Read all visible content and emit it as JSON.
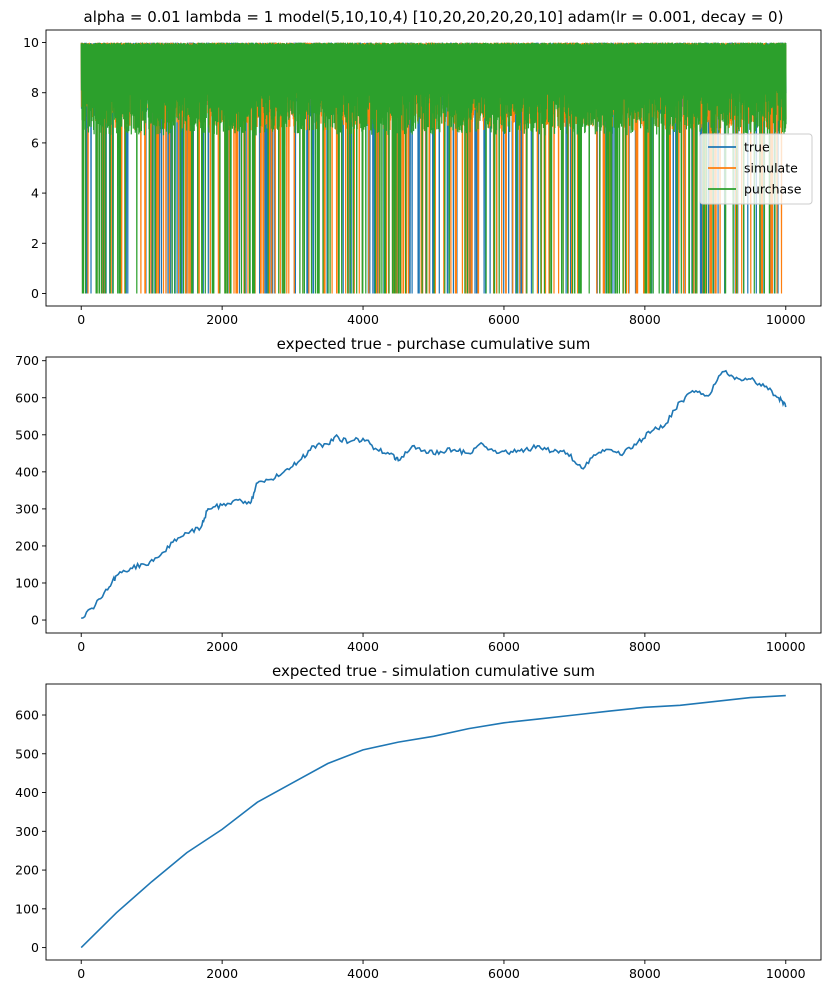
{
  "chart_data": [
    {
      "type": "line",
      "title": "alpha = 0.01  lambda = 1 model(5,10,10,4) [10,20,20,20,20,10] adam(lr = 0.001, decay = 0)",
      "xlim": [
        -500,
        10500
      ],
      "ylim": [
        -0.5,
        10.5
      ],
      "xticks": [
        0,
        2000,
        4000,
        6000,
        8000,
        10000
      ],
      "yticks": [
        0,
        2,
        4,
        6,
        8,
        10
      ],
      "xtick_labels": [
        "0",
        "2000",
        "4000",
        "6000",
        "8000",
        "10000"
      ],
      "ytick_labels": [
        "0",
        "2",
        "4",
        "6",
        "8",
        "10"
      ],
      "grid": false,
      "legend_position": "center-right",
      "series": [
        {
          "name": "true",
          "color": "#1f77b4",
          "range": [
            0,
            10
          ],
          "note_band": [
            7,
            10
          ]
        },
        {
          "name": "simulate",
          "color": "#ff7f0e",
          "range": [
            0,
            10
          ],
          "note_band": [
            6.5,
            10
          ]
        },
        {
          "name": "purchase",
          "color": "#2ca02c",
          "range": [
            0,
            10
          ],
          "note_band": [
            6.3,
            10
          ]
        }
      ]
    },
    {
      "type": "line",
      "title": "expected true - purchase cumulative sum",
      "xlim": [
        -500,
        10500
      ],
      "ylim": [
        -35,
        710
      ],
      "xticks": [
        0,
        2000,
        4000,
        6000,
        8000,
        10000
      ],
      "yticks": [
        0,
        100,
        200,
        300,
        400,
        500,
        600,
        700
      ],
      "xtick_labels": [
        "0",
        "2000",
        "4000",
        "6000",
        "8000",
        "10000"
      ],
      "ytick_labels": [
        "0",
        "100",
        "200",
        "300",
        "400",
        "500",
        "600",
        "700"
      ],
      "grid": false,
      "series": [
        {
          "color": "#1f77b4",
          "x": [
            0,
            200,
            400,
            500,
            700,
            900,
            1100,
            1300,
            1500,
            1700,
            1800,
            2000,
            2200,
            2400,
            2500,
            2700,
            2900,
            3100,
            3300,
            3500,
            3600,
            3800,
            4000,
            4200,
            4400,
            4500,
            4700,
            4900,
            5100,
            5300,
            5500,
            5700,
            5900,
            6100,
            6300,
            6500,
            6700,
            6900,
            7100,
            7300,
            7500,
            7700,
            7900,
            8100,
            8300,
            8500,
            8700,
            8900,
            9100,
            9300,
            9500,
            9700,
            9900,
            10000
          ],
          "y": [
            5,
            40,
            90,
            120,
            140,
            150,
            170,
            210,
            235,
            250,
            300,
            310,
            325,
            315,
            370,
            380,
            405,
            430,
            470,
            475,
            495,
            480,
            490,
            460,
            450,
            430,
            470,
            450,
            455,
            460,
            450,
            475,
            450,
            455,
            460,
            470,
            455,
            450,
            410,
            445,
            460,
            450,
            480,
            510,
            530,
            590,
            615,
            605,
            670,
            655,
            650,
            630,
            600,
            575
          ]
        }
      ]
    },
    {
      "type": "line",
      "title": "expected true - simulation cumulative sum",
      "xlim": [
        -500,
        10500
      ],
      "ylim": [
        -32,
        680
      ],
      "xticks": [
        0,
        2000,
        4000,
        6000,
        8000,
        10000
      ],
      "yticks": [
        0,
        100,
        200,
        300,
        400,
        500,
        600
      ],
      "xtick_labels": [
        "0",
        "2000",
        "4000",
        "6000",
        "8000",
        "10000"
      ],
      "ytick_labels": [
        "0",
        "100",
        "200",
        "300",
        "400",
        "500",
        "600"
      ],
      "grid": false,
      "series": [
        {
          "color": "#1f77b4",
          "x": [
            0,
            500,
            1000,
            1500,
            2000,
            2500,
            3000,
            3500,
            4000,
            4500,
            5000,
            5500,
            6000,
            6500,
            7000,
            7500,
            8000,
            8500,
            9000,
            9500,
            10000
          ],
          "y": [
            0,
            90,
            170,
            245,
            305,
            375,
            425,
            475,
            510,
            530,
            545,
            565,
            580,
            590,
            600,
            610,
            620,
            625,
            635,
            645,
            650
          ]
        }
      ]
    }
  ]
}
